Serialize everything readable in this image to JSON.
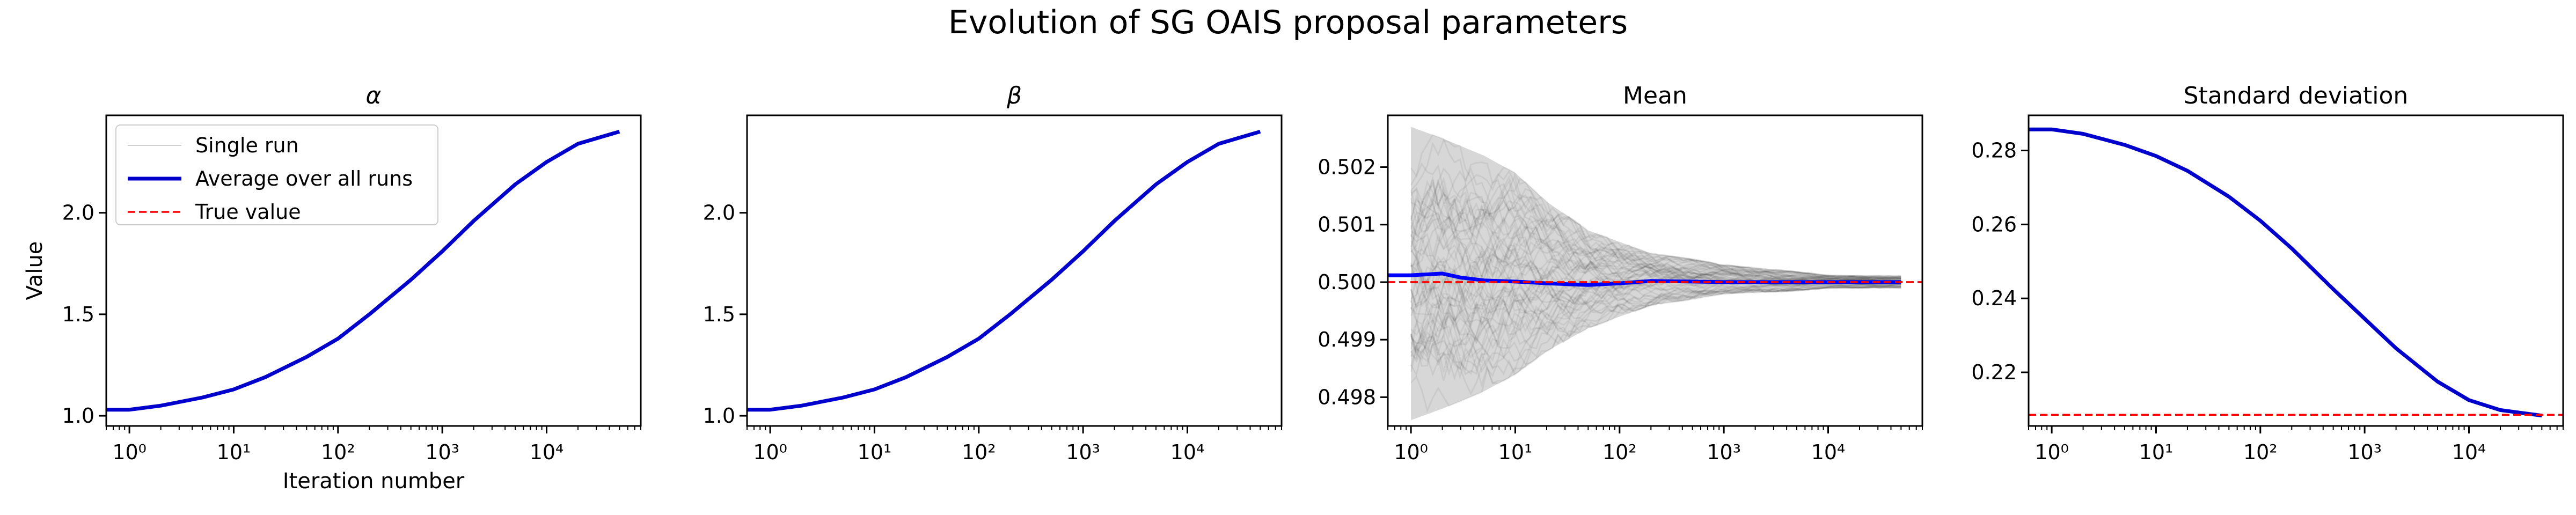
{
  "figure": {
    "title": "Evolution of SG OAIS proposal parameters"
  },
  "legend": {
    "entries": [
      {
        "label": "Single run",
        "color": "#cfcfcf",
        "style": "thin"
      },
      {
        "label": "Average over all runs",
        "color": "#0000cd",
        "style": "thick"
      },
      {
        "label": "True value",
        "color": "#ff0000",
        "style": "dashed"
      }
    ]
  },
  "chart_data": [
    {
      "type": "line",
      "title": "α",
      "xlabel": "Iteration number",
      "ylabel": "Value",
      "xscale": "log",
      "xlim": [
        0.6,
        80000
      ],
      "ylim": [
        0.95,
        2.48
      ],
      "xticks": [
        1,
        10,
        100,
        1000,
        10000
      ],
      "xtick_labels": [
        "10⁰",
        "10¹",
        "10²",
        "10³",
        "10⁴"
      ],
      "yticks": [
        1.0,
        1.5,
        2.0
      ],
      "ytick_labels": [
        "1.0",
        "1.5",
        "2.0"
      ],
      "legend_position": "upper-left",
      "series": [
        {
          "name": "Average over all runs",
          "color": "#0000cd",
          "x": [
            0.6,
            1,
            2,
            5,
            10,
            20,
            50,
            100,
            200,
            500,
            1000,
            2000,
            5000,
            10000,
            20000,
            50000
          ],
          "y": [
            1.03,
            1.03,
            1.05,
            1.09,
            1.13,
            1.19,
            1.29,
            1.38,
            1.5,
            1.67,
            1.81,
            1.96,
            2.14,
            2.25,
            2.34,
            2.4
          ]
        }
      ]
    },
    {
      "type": "line",
      "title": "β",
      "xlabel": "",
      "ylabel": "",
      "xscale": "log",
      "xlim": [
        0.6,
        80000
      ],
      "ylim": [
        0.95,
        2.48
      ],
      "xticks": [
        1,
        10,
        100,
        1000,
        10000
      ],
      "xtick_labels": [
        "10⁰",
        "10¹",
        "10²",
        "10³",
        "10⁴"
      ],
      "yticks": [
        1.0,
        1.5,
        2.0
      ],
      "ytick_labels": [
        "1.0",
        "1.5",
        "2.0"
      ],
      "series": [
        {
          "name": "Average over all runs",
          "color": "#0000cd",
          "x": [
            0.6,
            1,
            2,
            5,
            10,
            20,
            50,
            100,
            200,
            500,
            1000,
            2000,
            5000,
            10000,
            20000,
            50000
          ],
          "y": [
            1.03,
            1.03,
            1.05,
            1.09,
            1.13,
            1.19,
            1.29,
            1.38,
            1.5,
            1.67,
            1.81,
            1.96,
            2.14,
            2.25,
            2.34,
            2.4
          ]
        }
      ]
    },
    {
      "type": "line",
      "title": "Mean",
      "xlabel": "",
      "ylabel": "",
      "xscale": "log",
      "xlim": [
        0.6,
        80000
      ],
      "ylim": [
        0.4975,
        0.5029
      ],
      "xticks": [
        1,
        10,
        100,
        1000,
        10000
      ],
      "xtick_labels": [
        "10⁰",
        "10¹",
        "10²",
        "10³",
        "10⁴"
      ],
      "yticks": [
        0.498,
        0.499,
        0.5,
        0.501,
        0.502
      ],
      "ytick_labels": [
        "0.498",
        "0.499",
        "0.500",
        "0.501",
        "0.502"
      ],
      "single_runs_band": {
        "x": [
          1,
          2,
          5,
          10,
          20,
          50,
          100,
          200,
          500,
          1000,
          5000,
          10000,
          50000
        ],
        "lower": [
          0.4976,
          0.4978,
          0.4981,
          0.4984,
          0.4988,
          0.4992,
          0.4994,
          0.4996,
          0.4997,
          0.4998,
          0.49985,
          0.4999,
          0.4999
        ],
        "upper": [
          0.5027,
          0.5025,
          0.5022,
          0.5019,
          0.5014,
          0.5009,
          0.5007,
          0.5005,
          0.5004,
          0.5003,
          0.50018,
          0.50012,
          0.50011
        ]
      },
      "series": [
        {
          "name": "Average over all runs",
          "color": "#0000ff",
          "x": [
            0.6,
            1,
            2,
            3,
            5,
            10,
            20,
            50,
            100,
            200,
            500,
            1000,
            5000,
            10000,
            50000
          ],
          "y": [
            0.50012,
            0.50012,
            0.50015,
            0.50008,
            0.50003,
            0.50001,
            0.49998,
            0.49995,
            0.49998,
            0.50002,
            0.50001,
            0.5,
            0.5,
            0.5,
            0.5
          ]
        },
        {
          "name": "True value",
          "color": "#ff0000",
          "dashed": true,
          "x": [
            0.6,
            80000
          ],
          "y": [
            0.5,
            0.5
          ]
        }
      ]
    },
    {
      "type": "line",
      "title": "Standard deviation",
      "xlabel": "",
      "ylabel": "",
      "xscale": "log",
      "xlim": [
        0.6,
        80000
      ],
      "ylim": [
        0.2055,
        0.2895
      ],
      "xticks": [
        1,
        10,
        100,
        1000,
        10000
      ],
      "xtick_labels": [
        "10⁰",
        "10¹",
        "10²",
        "10³",
        "10⁴"
      ],
      "yticks": [
        0.22,
        0.24,
        0.26,
        0.28
      ],
      "ytick_labels": [
        "0.22",
        "0.24",
        "0.26",
        "0.28"
      ],
      "series": [
        {
          "name": "Average over all runs",
          "color": "#0000cd",
          "x": [
            0.6,
            1,
            2,
            5,
            10,
            20,
            50,
            100,
            200,
            500,
            1000,
            2000,
            5000,
            10000,
            20000,
            50000
          ],
          "y": [
            0.2857,
            0.2857,
            0.2845,
            0.2815,
            0.2785,
            0.2745,
            0.2675,
            0.261,
            0.2535,
            0.2425,
            0.2345,
            0.2265,
            0.2175,
            0.2125,
            0.2098,
            0.2083
          ]
        },
        {
          "name": "True value",
          "color": "#ff0000",
          "dashed": true,
          "x": [
            0.6,
            80000
          ],
          "y": [
            0.2085,
            0.2085
          ]
        }
      ]
    }
  ]
}
